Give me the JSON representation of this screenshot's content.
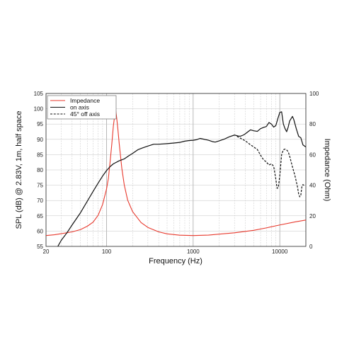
{
  "chart_data": {
    "type": "line",
    "title": "",
    "xlabel": "Frequency (Hz)",
    "ylabel": "SPL (dB) @ 2.83V, 1m, half space",
    "y2label": "Impedance (Ohm)",
    "x_scale": "log",
    "xlim": [
      20,
      20000
    ],
    "ylim": [
      55,
      105
    ],
    "y2lim": [
      0,
      100
    ],
    "x_ticks": [
      20,
      100,
      1000,
      10000
    ],
    "x_tick_labels": [
      "20",
      "100",
      "1000",
      "10000"
    ],
    "y_ticks": [
      55,
      60,
      65,
      70,
      75,
      80,
      85,
      90,
      95,
      100,
      105
    ],
    "y_tick_labels": [
      "55",
      "60",
      "65",
      "70",
      "75",
      "80",
      "85",
      "90",
      "95",
      "100",
      "105"
    ],
    "y2_ticks": [
      0,
      20,
      40,
      60,
      80,
      100
    ],
    "y2_tick_labels": [
      "0",
      "20",
      "40",
      "60",
      "80",
      "100"
    ],
    "grid": true,
    "legend_position": "top-left",
    "series": [
      {
        "name": "Impedance",
        "axis": "right",
        "color": "#e8392d",
        "style": "solid",
        "points": [
          [
            20,
            7.1
          ],
          [
            25,
            7.6
          ],
          [
            30,
            8.3
          ],
          [
            40,
            9.5
          ],
          [
            50,
            11.0
          ],
          [
            60,
            13.2
          ],
          [
            70,
            15.9
          ],
          [
            80,
            20.4
          ],
          [
            90,
            27.4
          ],
          [
            100,
            37.6
          ],
          [
            105,
            44.5
          ],
          [
            110,
            55.6
          ],
          [
            115,
            67.0
          ],
          [
            120,
            79.1
          ],
          [
            125,
            86.8
          ],
          [
            128,
            88.4
          ],
          [
            131,
            83.9
          ],
          [
            135,
            76.9
          ],
          [
            140,
            67.2
          ],
          [
            150,
            51.1
          ],
          [
            160,
            40.3
          ],
          [
            175,
            30.3
          ],
          [
            200,
            22.7
          ],
          [
            250,
            15.6
          ],
          [
            300,
            12.4
          ],
          [
            400,
            9.5
          ],
          [
            500,
            8.2
          ],
          [
            700,
            7.3
          ],
          [
            1000,
            7.1
          ],
          [
            1500,
            7.4
          ],
          [
            2000,
            8.0
          ],
          [
            3000,
            8.9
          ],
          [
            5000,
            10.5
          ],
          [
            7000,
            12.1
          ],
          [
            10000,
            14.0
          ],
          [
            15000,
            16.0
          ],
          [
            20000,
            17.2
          ]
        ]
      },
      {
        "name": "on axis",
        "axis": "left",
        "color": "#111111",
        "style": "solid",
        "points": [
          [
            20,
            46
          ],
          [
            25,
            53
          ],
          [
            30,
            57
          ],
          [
            35,
            59.5
          ],
          [
            40,
            62
          ],
          [
            50,
            66
          ],
          [
            60,
            69.8
          ],
          [
            70,
            73
          ],
          [
            80,
            75.7
          ],
          [
            90,
            78
          ],
          [
            100,
            79.8
          ],
          [
            110,
            81.1
          ],
          [
            120,
            82
          ],
          [
            140,
            83
          ],
          [
            160,
            83.6
          ],
          [
            180,
            84.6
          ],
          [
            200,
            85.4
          ],
          [
            230,
            86.6
          ],
          [
            260,
            87.2
          ],
          [
            300,
            87.8
          ],
          [
            350,
            88.4
          ],
          [
            400,
            88.4
          ],
          [
            500,
            88.6
          ],
          [
            600,
            88.8
          ],
          [
            700,
            89
          ],
          [
            800,
            89.4
          ],
          [
            900,
            89.6
          ],
          [
            1000,
            89.7
          ],
          [
            1100,
            89.9
          ],
          [
            1200,
            90.3
          ],
          [
            1300,
            90.1
          ],
          [
            1500,
            89.7
          ],
          [
            1700,
            89.2
          ],
          [
            1800,
            89.1
          ],
          [
            2000,
            89.5
          ],
          [
            2300,
            90.1
          ],
          [
            2600,
            90.8
          ],
          [
            3000,
            91.4
          ],
          [
            3300,
            91.1
          ],
          [
            3500,
            91
          ],
          [
            3800,
            91.4
          ],
          [
            4000,
            91.8
          ],
          [
            4300,
            92.5
          ],
          [
            4600,
            93.1
          ],
          [
            5000,
            92.8
          ],
          [
            5500,
            92.6
          ],
          [
            6000,
            93.5
          ],
          [
            6500,
            93.9
          ],
          [
            7000,
            94.2
          ],
          [
            7500,
            95.5
          ],
          [
            8000,
            95
          ],
          [
            8500,
            94
          ],
          [
            9000,
            94.5
          ],
          [
            9500,
            96.8
          ],
          [
            10000,
            98.8
          ],
          [
            10500,
            99
          ],
          [
            11000,
            95
          ],
          [
            11500,
            93.5
          ],
          [
            12000,
            92.5
          ],
          [
            12500,
            94
          ],
          [
            13000,
            96
          ],
          [
            14000,
            97.5
          ],
          [
            14500,
            96.5
          ],
          [
            15500,
            93.5
          ],
          [
            16500,
            91
          ],
          [
            17500,
            90.5
          ],
          [
            18500,
            88.2
          ],
          [
            20000,
            87.5
          ]
        ]
      },
      {
        "name": "45° off axis",
        "axis": "left",
        "color": "#111111",
        "style": "dashed",
        "points": [
          [
            3200,
            91
          ],
          [
            3500,
            90.4
          ],
          [
            4000,
            89.5
          ],
          [
            4500,
            88.4
          ],
          [
            5000,
            87.5
          ],
          [
            5500,
            86.7
          ],
          [
            6000,
            84.8
          ],
          [
            6500,
            83.3
          ],
          [
            7000,
            82.6
          ],
          [
            7500,
            81.6
          ],
          [
            8000,
            82
          ],
          [
            8500,
            81.2
          ],
          [
            9000,
            77
          ],
          [
            9300,
            74
          ],
          [
            9600,
            74.2
          ],
          [
            10000,
            78
          ],
          [
            10500,
            85
          ],
          [
            11000,
            86.6
          ],
          [
            11500,
            86.8
          ],
          [
            12000,
            86.5
          ],
          [
            12500,
            86
          ],
          [
            13000,
            84.5
          ],
          [
            14000,
            81
          ],
          [
            15000,
            78
          ],
          [
            16000,
            74.5
          ],
          [
            16500,
            72.2
          ],
          [
            17000,
            71.2
          ],
          [
            17500,
            71.8
          ],
          [
            18000,
            74.5
          ],
          [
            18500,
            75.2
          ],
          [
            19500,
            74.8
          ]
        ]
      }
    ]
  }
}
